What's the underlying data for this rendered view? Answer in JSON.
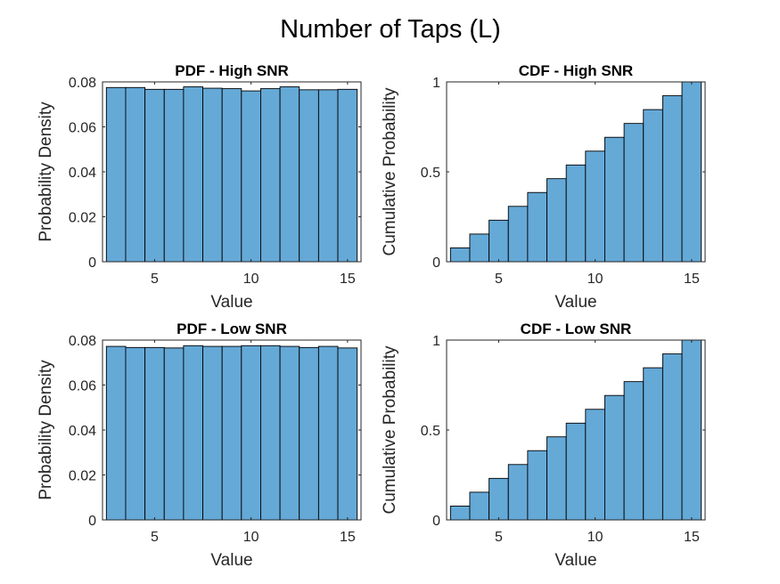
{
  "figure_title": "Number of Taps (L)",
  "colors": {
    "bar": "#65A9D7",
    "frame": "#262626",
    "bar_edge": "#000000"
  },
  "chart_data": [
    {
      "type": "bar",
      "title": "PDF - High SNR",
      "xlabel": "Value",
      "ylabel": "Probability Density",
      "x": [
        3,
        4,
        5,
        6,
        7,
        8,
        9,
        10,
        11,
        12,
        13,
        14,
        15
      ],
      "values": [
        0.0775,
        0.0775,
        0.0767,
        0.0767,
        0.0778,
        0.0772,
        0.077,
        0.076,
        0.077,
        0.0778,
        0.0765,
        0.0765,
        0.0767
      ],
      "xlim": [
        2.3,
        15.7
      ],
      "ylim": [
        0,
        0.08
      ],
      "xticks": [
        5,
        10,
        15
      ],
      "yticks": [
        0,
        0.02,
        0.04,
        0.06,
        0.08
      ],
      "ytick_labels": [
        "0",
        "0.02",
        "0.04",
        "0.06",
        "0.08"
      ],
      "grid": false
    },
    {
      "type": "bar",
      "title": "CDF - High SNR",
      "xlabel": "Value",
      "ylabel": "Cumulative Probability",
      "x": [
        3,
        4,
        5,
        6,
        7,
        8,
        9,
        10,
        11,
        12,
        13,
        14,
        15
      ],
      "values": [
        0.077,
        0.154,
        0.231,
        0.308,
        0.385,
        0.462,
        0.538,
        0.615,
        0.692,
        0.769,
        0.846,
        0.923,
        1.0
      ],
      "xlim": [
        2.3,
        15.7
      ],
      "ylim": [
        0,
        1
      ],
      "xticks": [
        5,
        10,
        15
      ],
      "yticks": [
        0,
        0.5,
        1
      ],
      "ytick_labels": [
        "0",
        "0.5",
        "1"
      ],
      "grid": false
    },
    {
      "type": "bar",
      "title": "PDF - Low SNR",
      "xlabel": "Value",
      "ylabel": "Probability Density",
      "x": [
        3,
        4,
        5,
        6,
        7,
        8,
        9,
        10,
        11,
        12,
        13,
        14,
        15
      ],
      "values": [
        0.0772,
        0.0767,
        0.0767,
        0.0765,
        0.0775,
        0.0772,
        0.0772,
        0.0775,
        0.0775,
        0.0772,
        0.0767,
        0.0772,
        0.0765
      ],
      "xlim": [
        2.3,
        15.7
      ],
      "ylim": [
        0,
        0.08
      ],
      "xticks": [
        5,
        10,
        15
      ],
      "yticks": [
        0,
        0.02,
        0.04,
        0.06,
        0.08
      ],
      "ytick_labels": [
        "0",
        "0.02",
        "0.04",
        "0.06",
        "0.08"
      ],
      "grid": false
    },
    {
      "type": "bar",
      "title": "CDF - Low SNR",
      "xlabel": "Value",
      "ylabel": "Cumulative Probability",
      "x": [
        3,
        4,
        5,
        6,
        7,
        8,
        9,
        10,
        11,
        12,
        13,
        14,
        15
      ],
      "values": [
        0.077,
        0.154,
        0.231,
        0.308,
        0.385,
        0.462,
        0.538,
        0.615,
        0.692,
        0.769,
        0.846,
        0.923,
        1.0
      ],
      "xlim": [
        2.3,
        15.7
      ],
      "ylim": [
        0,
        1
      ],
      "xticks": [
        5,
        10,
        15
      ],
      "yticks": [
        0,
        0.5,
        1
      ],
      "ytick_labels": [
        "0",
        "0.5",
        "1"
      ],
      "grid": false
    }
  ]
}
